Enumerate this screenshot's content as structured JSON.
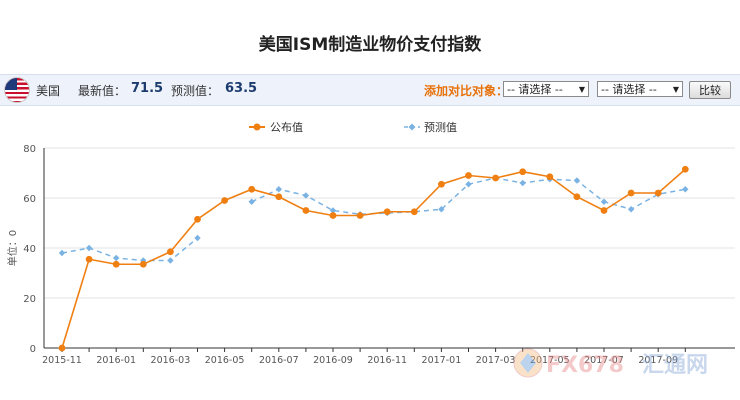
{
  "title": "美国ISM制造业物价支付指数",
  "toolbar": {
    "country": "美国",
    "latest_label": "最新值：",
    "latest_value": "71.5",
    "forecast_label": "预测值：",
    "forecast_value": "63.5",
    "compare_label": "添加对比对象：",
    "select1": "-- 请选择 --",
    "select2": "-- 请选择 --",
    "compare_button": "比较"
  },
  "watermark": {
    "text1": "FX678",
    "text2": "汇通网"
  },
  "colors": {
    "actual": "#f07f12",
    "forecast": "#7ab3e3"
  },
  "chart_data": {
    "type": "line",
    "ylabel": "单位：0",
    "ylim": [
      0,
      80
    ],
    "yticks": [
      0,
      20,
      40,
      60,
      80
    ],
    "grid": true,
    "legend_position": "top-center",
    "x": [
      "2015-11",
      "2015-12",
      "2016-01",
      "2016-02",
      "2016-03",
      "2016-04",
      "2016-05",
      "2016-06",
      "2016-07",
      "2016-08",
      "2016-09",
      "2016-10",
      "2016-11",
      "2016-12",
      "2017-01",
      "2017-02",
      "2017-03",
      "2017-04",
      "2017-05",
      "2017-06",
      "2017-07",
      "2017-08",
      "2017-09",
      "2017-10"
    ],
    "xtick_labels": [
      "2015-11",
      "2016-01",
      "2016-03",
      "2016-05",
      "2016-07",
      "2016-09",
      "2016-11",
      "2017-01",
      "2017-03",
      "2017-05",
      "2017-07",
      "2017-09"
    ],
    "series": [
      {
        "name": "公布值",
        "values": [
          0,
          35.5,
          33.5,
          33.5,
          38.5,
          51.5,
          59,
          63.5,
          60.5,
          55,
          53,
          53,
          54.5,
          54.5,
          65.5,
          69,
          68,
          70.5,
          68.5,
          60.5,
          55,
          62,
          62,
          71.5
        ]
      },
      {
        "name": "预测值",
        "values": [
          38,
          40,
          36,
          35,
          35,
          44,
          null,
          58.5,
          63.5,
          61,
          55,
          53.5,
          54,
          54.5,
          55.5,
          65.5,
          68,
          66,
          67.5,
          67,
          58.5,
          55.5,
          61.5,
          63.5
        ]
      }
    ]
  }
}
